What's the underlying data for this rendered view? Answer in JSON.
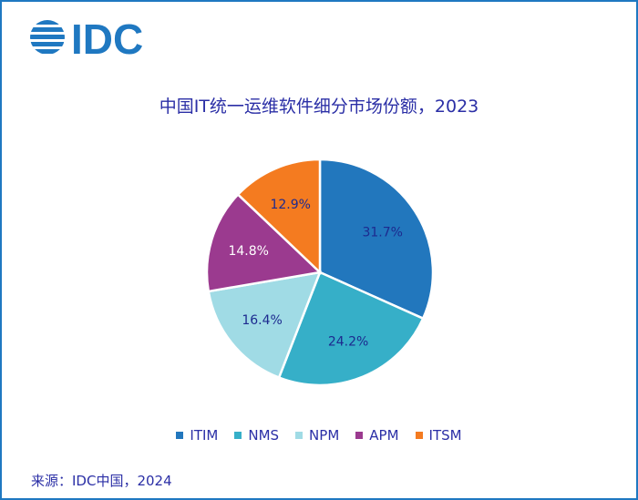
{
  "logo_text": "IDC",
  "chart_data": {
    "type": "pie",
    "title": "中国IT统一运维软件细分市场份额，2023",
    "categories": [
      "ITIM",
      "NMS",
      "NPM",
      "APM",
      "ITSM"
    ],
    "values": [
      31.7,
      24.2,
      16.4,
      14.8,
      12.9
    ],
    "labels": [
      "31.7%",
      "24.2%",
      "16.4%",
      "14.8%",
      "12.9%"
    ],
    "colors": [
      "#2277bd",
      "#36afc8",
      "#a0dbe5",
      "#9b3a8f",
      "#f47b20"
    ],
    "label_colors": [
      "#1d2a8f",
      "#1d2a8f",
      "#1d2a8f",
      "#ffffff",
      "#1d2a8f"
    ],
    "start": "12 o'clock, clockwise",
    "legend_position": "bottom"
  },
  "source": "来源：IDC中国，2024"
}
